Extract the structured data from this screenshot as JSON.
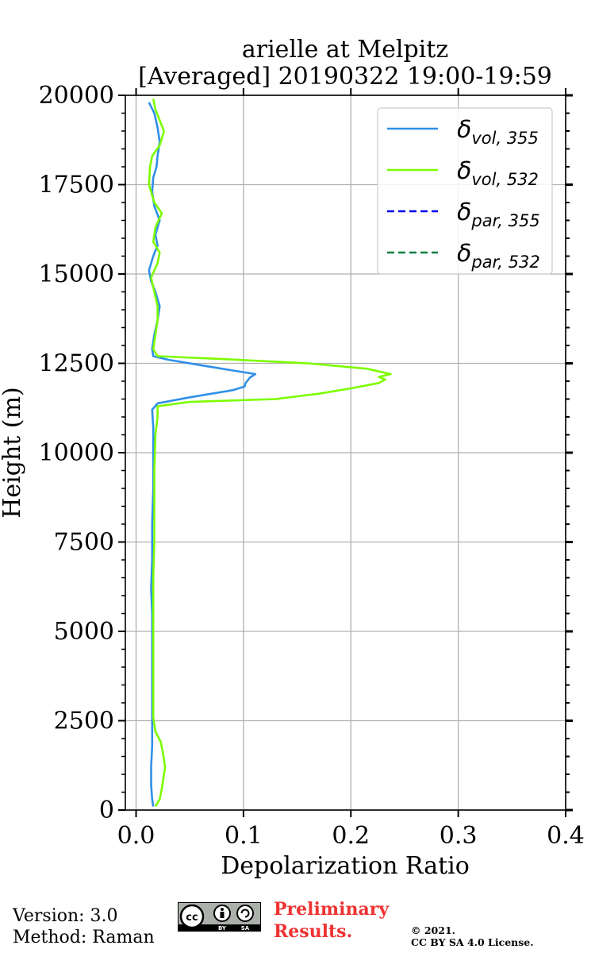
{
  "chart_data": {
    "type": "line",
    "title_line1": "arielle at Melpitz",
    "title_line2": "[Averaged] 20190322 19:00-19:59",
    "xlabel": "Depolarization Ratio",
    "ylabel": "Height (m)",
    "xlim": [
      -0.01,
      0.4
    ],
    "ylim": [
      0,
      20000
    ],
    "xticks": [
      0.0,
      0.1,
      0.2,
      0.3,
      0.4
    ],
    "xtick_labels": [
      "0.0",
      "0.1",
      "0.2",
      "0.3",
      "0.4"
    ],
    "yticks": [
      0,
      2500,
      5000,
      7500,
      10000,
      12500,
      15000,
      17500,
      20000
    ],
    "ytick_labels": [
      "0",
      "2500",
      "5000",
      "7500",
      "10000",
      "12500",
      "15000",
      "17500",
      "20000"
    ],
    "grid": true,
    "legend_position": "top-right",
    "legend": [
      {
        "base": "δ",
        "sub": "vol, 355",
        "color": "#3090e8",
        "dash": "solid"
      },
      {
        "base": "δ",
        "sub": "vol, 532",
        "color": "#7cfc00",
        "dash": "solid"
      },
      {
        "base": "δ",
        "sub": "par, 355",
        "color": "#0000ee",
        "dash": "dashed"
      },
      {
        "base": "δ",
        "sub": "par, 532",
        "color": "#008040",
        "dash": "dashed"
      }
    ],
    "series": [
      {
        "name": "δvol,355",
        "color": "#3090e8",
        "points": [
          [
            0.016,
            100
          ],
          [
            0.015,
            300
          ],
          [
            0.014,
            700
          ],
          [
            0.014,
            1200
          ],
          [
            0.015,
            1800
          ],
          [
            0.015,
            2500
          ],
          [
            0.015,
            3500
          ],
          [
            0.015,
            4500
          ],
          [
            0.015,
            5500
          ],
          [
            0.014,
            6200
          ],
          [
            0.015,
            7000
          ],
          [
            0.015,
            8000
          ],
          [
            0.016,
            9000
          ],
          [
            0.016,
            10000
          ],
          [
            0.016,
            10700
          ],
          [
            0.015,
            11200
          ],
          [
            0.02,
            11380
          ],
          [
            0.05,
            11550
          ],
          [
            0.09,
            11750
          ],
          [
            0.101,
            11850
          ],
          [
            0.102,
            11950
          ],
          [
            0.106,
            12100
          ],
          [
            0.111,
            12200
          ],
          [
            0.09,
            12300
          ],
          [
            0.06,
            12450
          ],
          [
            0.03,
            12600
          ],
          [
            0.016,
            12700
          ],
          [
            0.015,
            12900
          ],
          [
            0.017,
            13300
          ],
          [
            0.02,
            13700
          ],
          [
            0.022,
            14100
          ],
          [
            0.018,
            14500
          ],
          [
            0.014,
            14800
          ],
          [
            0.012,
            15100
          ],
          [
            0.016,
            15500
          ],
          [
            0.02,
            15800
          ],
          [
            0.018,
            16100
          ],
          [
            0.022,
            16500
          ],
          [
            0.017,
            16900
          ],
          [
            0.015,
            17300
          ],
          [
            0.016,
            17700
          ],
          [
            0.019,
            18000
          ],
          [
            0.02,
            18300
          ],
          [
            0.022,
            18700
          ],
          [
            0.02,
            19100
          ],
          [
            0.017,
            19500
          ],
          [
            0.012,
            19800
          ]
        ]
      },
      {
        "name": "δvol,532",
        "color": "#7cfc00",
        "points": [
          [
            0.018,
            100
          ],
          [
            0.022,
            300
          ],
          [
            0.024,
            600
          ],
          [
            0.027,
            1200
          ],
          [
            0.025,
            1600
          ],
          [
            0.023,
            1900
          ],
          [
            0.018,
            2200
          ],
          [
            0.016,
            2600
          ],
          [
            0.016,
            3500
          ],
          [
            0.016,
            4500
          ],
          [
            0.016,
            5500
          ],
          [
            0.016,
            6500
          ],
          [
            0.017,
            7500
          ],
          [
            0.017,
            8500
          ],
          [
            0.017,
            9500
          ],
          [
            0.018,
            10500
          ],
          [
            0.02,
            11000
          ],
          [
            0.02,
            11300
          ],
          [
            0.05,
            11420
          ],
          [
            0.13,
            11500
          ],
          [
            0.17,
            11650
          ],
          [
            0.2,
            11800
          ],
          [
            0.226,
            11950
          ],
          [
            0.232,
            12050
          ],
          [
            0.226,
            12120
          ],
          [
            0.237,
            12200
          ],
          [
            0.215,
            12350
          ],
          [
            0.16,
            12500
          ],
          [
            0.08,
            12620
          ],
          [
            0.02,
            12700
          ],
          [
            0.016,
            12900
          ],
          [
            0.018,
            13300
          ],
          [
            0.02,
            13700
          ],
          [
            0.02,
            14100
          ],
          [
            0.017,
            14500
          ],
          [
            0.014,
            14900
          ],
          [
            0.02,
            15300
          ],
          [
            0.022,
            15600
          ],
          [
            0.016,
            15900
          ],
          [
            0.018,
            16300
          ],
          [
            0.024,
            16700
          ],
          [
            0.017,
            17000
          ],
          [
            0.012,
            17500
          ],
          [
            0.013,
            18000
          ],
          [
            0.015,
            18300
          ],
          [
            0.022,
            18600
          ],
          [
            0.026,
            19000
          ],
          [
            0.022,
            19300
          ],
          [
            0.018,
            19600
          ],
          [
            0.016,
            19900
          ]
        ]
      }
    ]
  },
  "footer": {
    "version": "Version: 3.0",
    "method": "Method: Raman",
    "cc_main": "cc",
    "cc_by": "BY",
    "cc_sa": "SA",
    "preliminary_line1": "Preliminary",
    "preliminary_line2": "Results.",
    "copyright": "©  2021.",
    "license": "CC BY SA 4.0 License."
  }
}
